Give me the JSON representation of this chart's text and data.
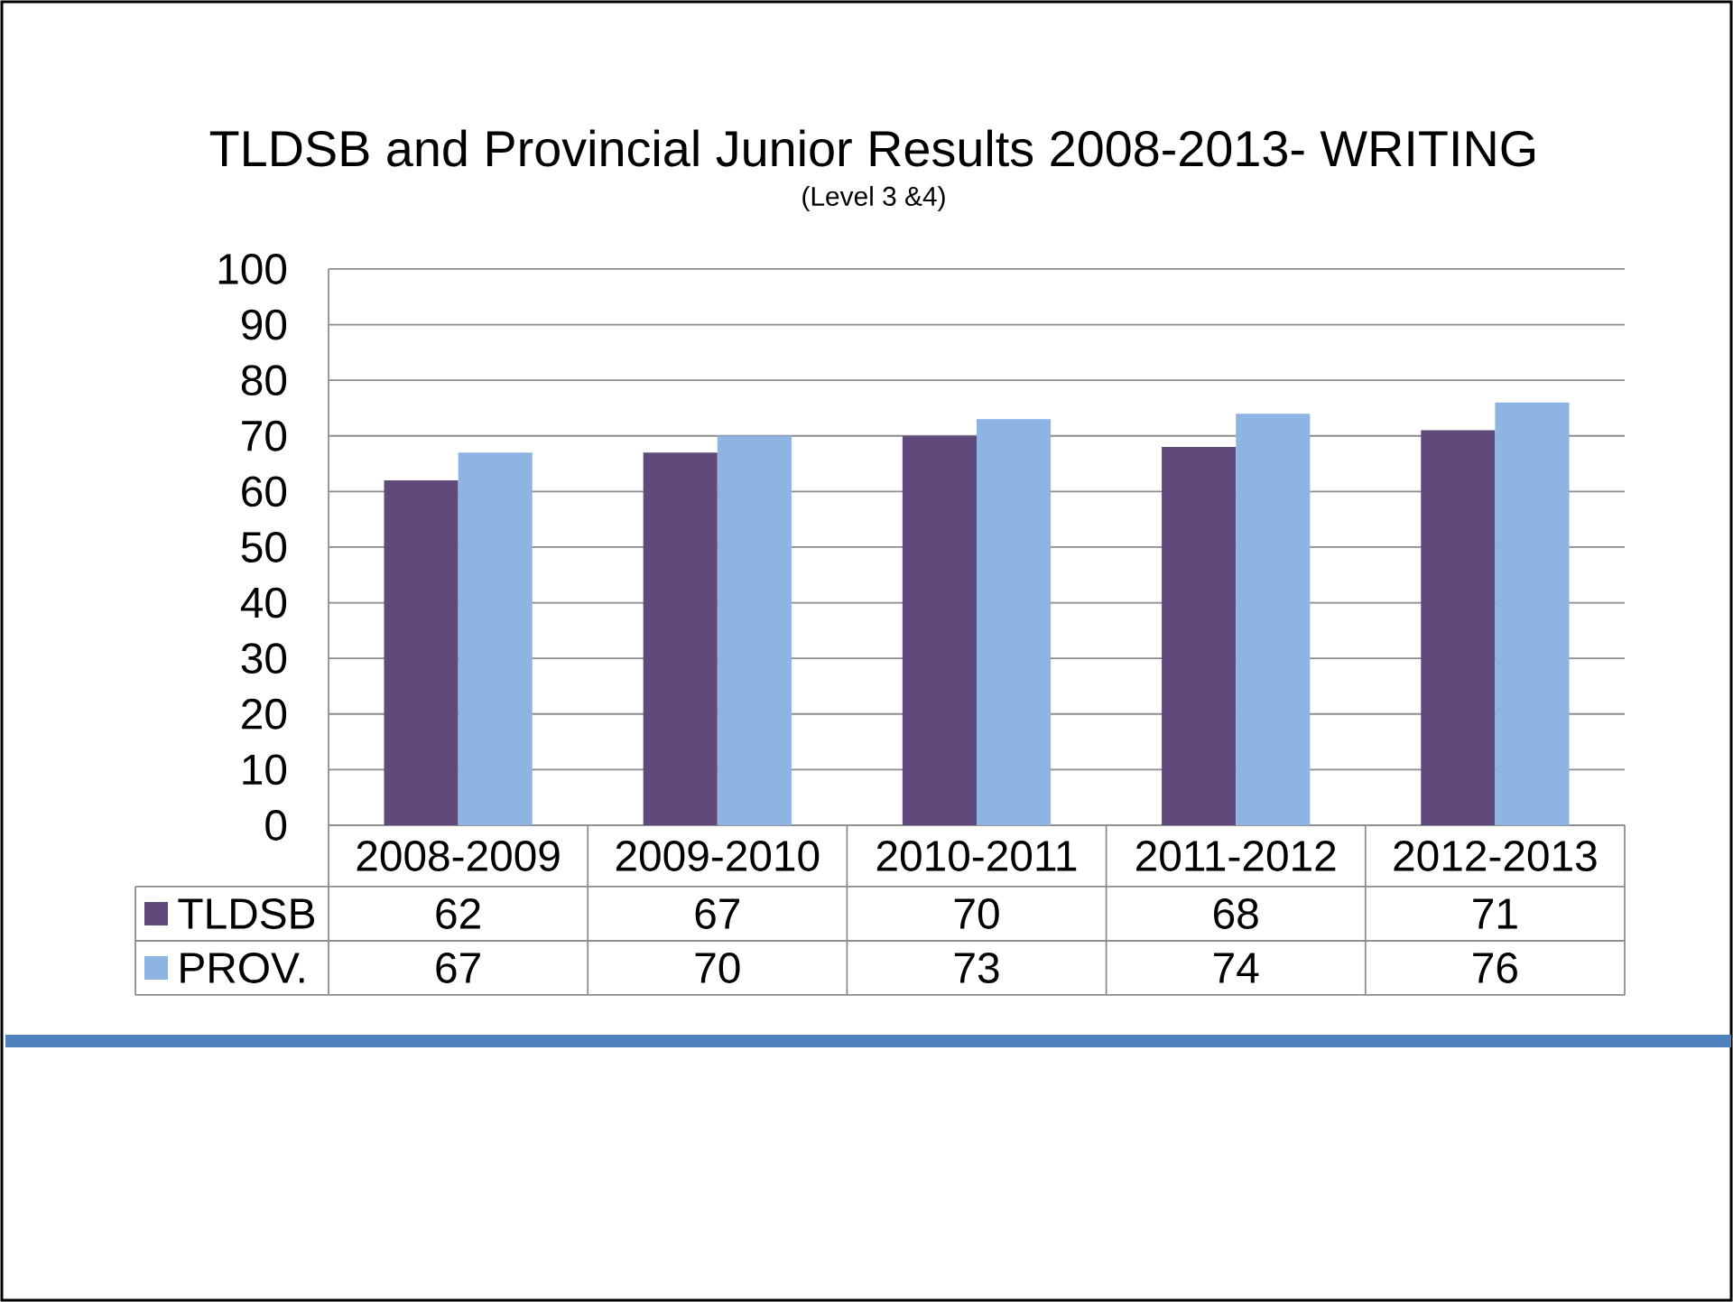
{
  "chart_data": {
    "type": "bar",
    "title": "TLDSB and Provincial Junior Results 2008-2013- WRITING",
    "subtitle": "(Level 3 &4)",
    "categories": [
      "2008-2009",
      "2009-2010",
      "2010-2011",
      "2011-2012",
      "2012-2013"
    ],
    "series": [
      {
        "name": "TLDSB",
        "color": "#604a7b",
        "values": [
          62,
          67,
          70,
          68,
          71
        ]
      },
      {
        "name": "PROV.",
        "color": "#8eb4e3",
        "values": [
          67,
          70,
          73,
          74,
          76
        ]
      }
    ],
    "ylim": [
      0,
      100
    ],
    "yticks": [
      0,
      10,
      20,
      30,
      40,
      50,
      60,
      70,
      80,
      90,
      100
    ],
    "grid": "y",
    "legend": "bottom",
    "data_labels": true
  }
}
